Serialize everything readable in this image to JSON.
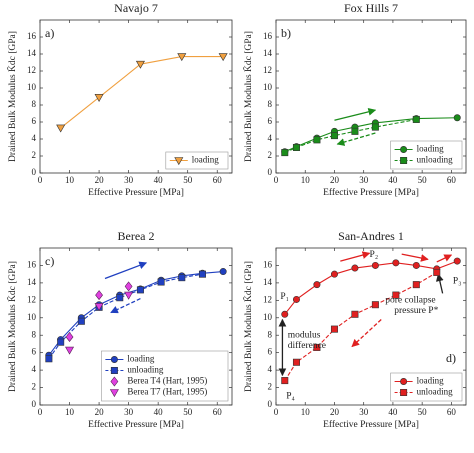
{
  "chart_data": [
    {
      "type": "line",
      "title": "Navajo 7",
      "panel_label": "a)",
      "panel_label_corner": "upper left",
      "xlabel": "Effective Pressure [MPa]",
      "ylabel": "Drained Bulk Modulus K̃dc [GPa]",
      "xlim": [
        0,
        65
      ],
      "ylim": [
        0,
        18
      ],
      "xticks": [
        0,
        10,
        20,
        30,
        40,
        50,
        60
      ],
      "yticks": [
        0,
        2,
        4,
        6,
        8,
        10,
        12,
        14,
        16
      ],
      "legend": "lower right",
      "series": [
        {
          "name": "loading",
          "color": "#f0a040",
          "marker": "v",
          "linestyle": "solid",
          "x": [
            7,
            20,
            34,
            48,
            62
          ],
          "values": [
            5.3,
            8.9,
            12.8,
            13.7,
            13.7
          ]
        }
      ]
    },
    {
      "type": "line",
      "title": "Fox Hills 7",
      "panel_label": "b)",
      "panel_label_corner": "upper left",
      "xlabel": "Effective Pressure [MPa]",
      "ylabel": "Drained Bulk Modulus K̃dc [GPa]",
      "xlim": [
        0,
        65
      ],
      "ylim": [
        0,
        18
      ],
      "xticks": [
        0,
        10,
        20,
        30,
        40,
        50,
        60
      ],
      "yticks": [
        0,
        2,
        4,
        6,
        8,
        10,
        12,
        14,
        16
      ],
      "legend": "lower right",
      "series": [
        {
          "name": "loading",
          "color": "#1a8c1a",
          "marker": "o",
          "linestyle": "solid",
          "x": [
            3,
            7,
            14,
            20,
            27,
            34,
            48,
            62
          ],
          "values": [
            2.5,
            3.1,
            4.1,
            4.9,
            5.4,
            5.9,
            6.4,
            6.5
          ]
        },
        {
          "name": "unloading",
          "color": "#1a8c1a",
          "marker": "s",
          "linestyle": "dashed",
          "x": [
            3,
            7,
            14,
            20,
            27,
            34,
            48
          ],
          "values": [
            2.4,
            3.0,
            3.9,
            4.4,
            4.9,
            5.4,
            6.3
          ]
        }
      ]
    },
    {
      "type": "line",
      "title": "Berea 2",
      "panel_label": "c)",
      "panel_label_corner": "upper left",
      "xlabel": "Effective Pressure [MPa]",
      "ylabel": "Drained Bulk Modulus K̃dc [GPa]",
      "xlim": [
        0,
        65
      ],
      "ylim": [
        0,
        18
      ],
      "xticks": [
        0,
        10,
        20,
        30,
        40,
        50,
        60
      ],
      "yticks": [
        0,
        2,
        4,
        6,
        8,
        10,
        12,
        14,
        16
      ],
      "legend": "lower right",
      "series": [
        {
          "name": "loading",
          "color": "#2040c0",
          "marker": "o",
          "linestyle": "solid",
          "x": [
            3,
            7,
            14,
            20,
            27,
            34,
            41,
            48,
            55,
            62
          ],
          "values": [
            5.7,
            7.5,
            10.0,
            11.5,
            12.6,
            13.3,
            14.3,
            14.8,
            15.1,
            15.3
          ]
        },
        {
          "name": "unloading",
          "color": "#2040c0",
          "marker": "s",
          "linestyle": "dashed",
          "x": [
            3,
            7,
            14,
            20,
            27,
            34,
            41,
            48,
            55
          ],
          "values": [
            5.3,
            7.2,
            9.6,
            11.2,
            12.3,
            13.2,
            14.1,
            14.6,
            15.0
          ]
        },
        {
          "name": "Berea T4 (Hart, 1995)",
          "color": "#e040e0",
          "marker": "d",
          "linestyle": "none",
          "x": [
            10,
            20,
            30
          ],
          "values": [
            7.8,
            12.6,
            13.6
          ]
        },
        {
          "name": "Berea T7 (Hart, 1995)",
          "color": "#e040e0",
          "marker": "v",
          "linestyle": "none",
          "x": [
            10,
            20,
            30
          ],
          "values": [
            6.3,
            11.3,
            12.6
          ]
        }
      ]
    },
    {
      "type": "line",
      "title": "San-Andres 1",
      "panel_label": "d)",
      "panel_label_corner": "lower right",
      "xlabel": "Effective Pressure [MPa]",
      "ylabel": "Drained Bulk Modulus K̃dc [GPa]",
      "xlim": [
        0,
        65
      ],
      "ylim": [
        0,
        18
      ],
      "xticks": [
        0,
        10,
        20,
        30,
        40,
        50,
        60
      ],
      "yticks": [
        0,
        2,
        4,
        6,
        8,
        10,
        12,
        14,
        16
      ],
      "legend": "lower right",
      "annotations": [
        "P₁",
        "P₂",
        "P₃",
        "P₄",
        "modulus",
        "difference",
        "pore collapse",
        "pressure P*"
      ],
      "series": [
        {
          "name": "loading",
          "color": "#e02020",
          "marker": "o",
          "linestyle": "solid",
          "x": [
            3,
            7,
            14,
            20,
            27,
            34,
            41,
            48,
            55,
            62
          ],
          "values": [
            10.4,
            12.1,
            13.8,
            15.0,
            15.7,
            16.0,
            16.3,
            16.0,
            15.6,
            16.5
          ]
        },
        {
          "name": "unloading",
          "color": "#e02020",
          "marker": "s",
          "linestyle": "dashed",
          "x": [
            3,
            7,
            14,
            20,
            27,
            34,
            41,
            48,
            55
          ],
          "values": [
            2.8,
            4.9,
            6.6,
            8.7,
            10.4,
            11.5,
            12.6,
            13.8,
            15.2
          ]
        }
      ]
    }
  ]
}
